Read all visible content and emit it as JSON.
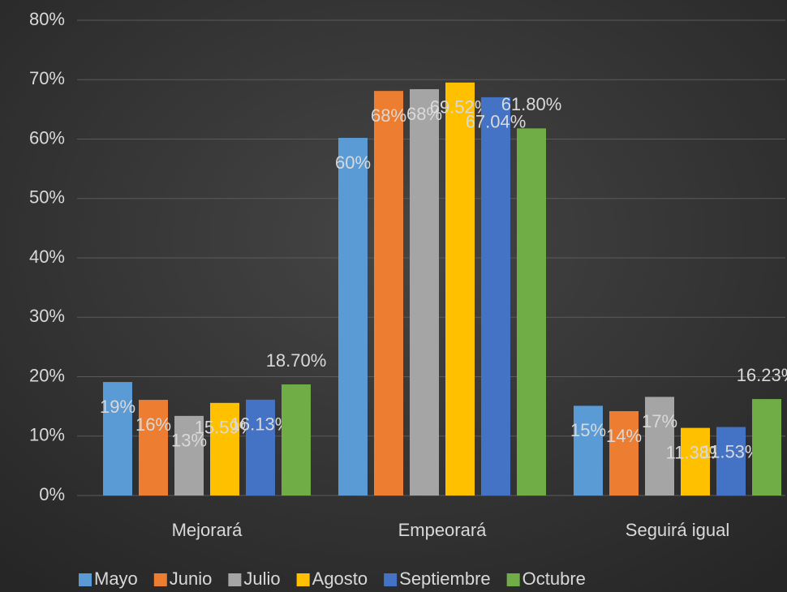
{
  "chart_data": {
    "type": "bar",
    "categories": [
      "Mejorará",
      "Empeorará",
      "Seguirá igual"
    ],
    "series": [
      {
        "name": "Mayo",
        "color": "#5b9bd5",
        "values": [
          19.1,
          60.2,
          15.1
        ],
        "value_labels": [
          "19%",
          "60%",
          "15%"
        ]
      },
      {
        "name": "Junio",
        "color": "#ed7d31",
        "values": [
          16.1,
          68.1,
          14.2
        ],
        "value_labels": [
          "16%",
          "68%",
          "14%"
        ]
      },
      {
        "name": "Julio",
        "color": "#a5a5a5",
        "values": [
          13.4,
          68.4,
          16.6
        ],
        "value_labels": [
          "13%",
          "68%",
          "17%"
        ]
      },
      {
        "name": "Agosto",
        "color": "#ffc000",
        "values": [
          15.59,
          69.52,
          11.38
        ],
        "value_labels": [
          "15.59%",
          "69.52%",
          "11.38%"
        ]
      },
      {
        "name": "Septiembre",
        "color": "#4472c4",
        "values": [
          16.13,
          67.04,
          11.53
        ],
        "value_labels": [
          "16.13%",
          "67.04%",
          "11.53%"
        ]
      },
      {
        "name": "Octubre",
        "color": "#70ad47",
        "values": [
          18.7,
          61.8,
          16.23
        ],
        "value_labels": [
          "18.70%",
          "61.80%",
          "16.23%"
        ]
      }
    ],
    "ylim": [
      0,
      80
    ],
    "yticks": [
      {
        "value": 0,
        "label": "0%"
      },
      {
        "value": 10,
        "label": "10%"
      },
      {
        "value": 20,
        "label": "20%"
      },
      {
        "value": 30,
        "label": "30%"
      },
      {
        "value": 40,
        "label": "40%"
      },
      {
        "value": 50,
        "label": "50%"
      },
      {
        "value": 60,
        "label": "60%"
      },
      {
        "value": 70,
        "label": "70%"
      },
      {
        "value": 80,
        "label": "80%"
      }
    ],
    "grid": true,
    "legend": "bottom"
  }
}
